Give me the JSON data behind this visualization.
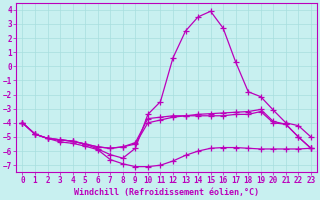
{
  "bg_color": "#c8f0f0",
  "grid_color": "#a8dede",
  "line_color": "#bb00bb",
  "marker": "+",
  "markersize": 4,
  "linewidth": 0.9,
  "xlabel": "Windchill (Refroidissement éolien,°C)",
  "xlabel_fontsize": 6.0,
  "tick_fontsize": 5.5,
  "xlim": [
    -0.5,
    23.5
  ],
  "ylim": [
    -7.5,
    4.5
  ],
  "yticks": [
    -7,
    -6,
    -5,
    -4,
    -3,
    -2,
    -1,
    0,
    1,
    2,
    3,
    4
  ],
  "xticks": [
    0,
    1,
    2,
    3,
    4,
    5,
    6,
    7,
    8,
    9,
    10,
    11,
    12,
    13,
    14,
    15,
    16,
    17,
    18,
    19,
    20,
    21,
    22,
    23
  ],
  "curve1_x": [
    0,
    1,
    2,
    3,
    4,
    5,
    6,
    7,
    8,
    9,
    10,
    11,
    12,
    13,
    14,
    15,
    16,
    17,
    18,
    19,
    20,
    21,
    22,
    23
  ],
  "curve1_y": [
    -4.0,
    -4.8,
    -5.1,
    -5.2,
    -5.3,
    -5.5,
    -5.85,
    -6.25,
    -6.5,
    -5.8,
    -3.4,
    -2.5,
    0.6,
    2.5,
    3.5,
    3.9,
    2.7,
    0.3,
    -1.8,
    -2.15,
    -3.1,
    -4.0,
    -4.2,
    -5.0
  ],
  "curve2_x": [
    0,
    1,
    2,
    3,
    4,
    5,
    6,
    7,
    8,
    9,
    10,
    11,
    12,
    13,
    14,
    15,
    16,
    17,
    18,
    19,
    20,
    21,
    22,
    23
  ],
  "curve2_y": [
    -4.0,
    -4.8,
    -5.1,
    -5.35,
    -5.45,
    -5.65,
    -5.9,
    -6.6,
    -6.9,
    -7.1,
    -7.1,
    -7.0,
    -6.7,
    -6.3,
    -6.0,
    -5.8,
    -5.75,
    -5.75,
    -5.8,
    -5.85,
    -5.85,
    -5.85,
    -5.85,
    -5.8
  ],
  "curve3_x": [
    0,
    1,
    2,
    3,
    4,
    5,
    6,
    7,
    8,
    9,
    10,
    11,
    12,
    13,
    14,
    15,
    16,
    17,
    18,
    19,
    20,
    21,
    22,
    23
  ],
  "curve3_y": [
    -4.0,
    -4.8,
    -5.1,
    -5.2,
    -5.3,
    -5.5,
    -5.7,
    -5.8,
    -5.7,
    -5.5,
    -4.0,
    -3.8,
    -3.6,
    -3.5,
    -3.5,
    -3.5,
    -3.5,
    -3.4,
    -3.4,
    -3.2,
    -4.0,
    -4.1,
    -5.0,
    -5.8
  ],
  "curve4_x": [
    0,
    1,
    2,
    3,
    4,
    5,
    6,
    7,
    8,
    9,
    10,
    11,
    12,
    13,
    14,
    15,
    16,
    17,
    18,
    19,
    20,
    21,
    22,
    23
  ],
  "curve4_y": [
    -4.0,
    -4.8,
    -5.1,
    -5.2,
    -5.3,
    -5.5,
    -5.7,
    -5.8,
    -5.7,
    -5.4,
    -3.7,
    -3.6,
    -3.5,
    -3.5,
    -3.4,
    -3.35,
    -3.3,
    -3.25,
    -3.2,
    -3.05,
    -3.9,
    -4.1,
    -5.0,
    -5.8
  ]
}
